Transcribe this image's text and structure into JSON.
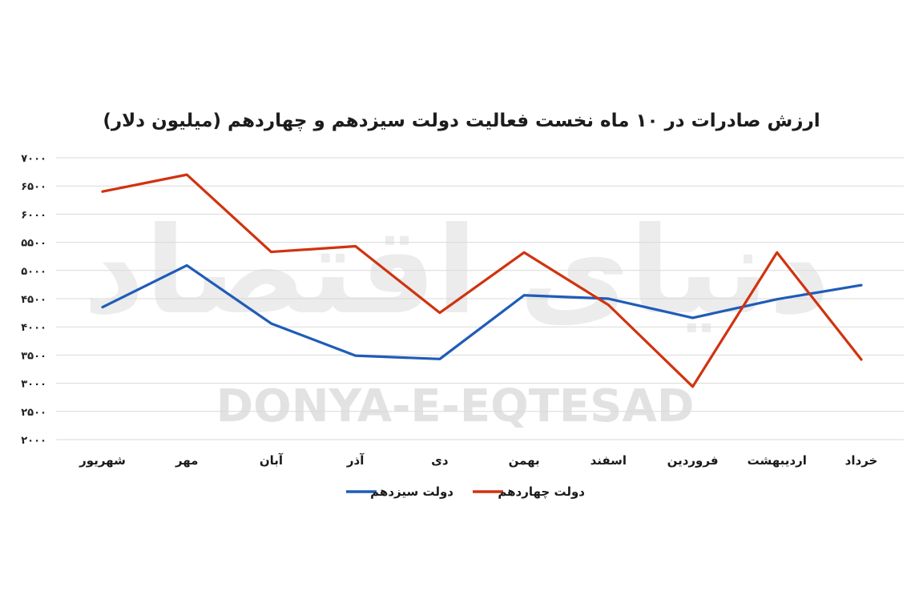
{
  "chart_data": {
    "type": "line",
    "title": "ارزش صادرات در ۱۰ ماه نخست فعالیت دولت سیزدهم و چهاردهم (میلیون دلار)",
    "categories": [
      "شهریور",
      "مهر",
      "آبان",
      "آذر",
      "دی",
      "بهمن",
      "اسفند",
      "فروردین",
      "اردیبهشت",
      "خرداد"
    ],
    "ylim": [
      2000,
      7000
    ],
    "yticks": [
      2000,
      2500,
      3000,
      3500,
      4000,
      4500,
      5000,
      5500,
      6000,
      6500,
      7000
    ],
    "ytick_labels": [
      "۲۰۰۰",
      "۲۵۰۰",
      "۳۰۰۰",
      "۳۵۰۰",
      "۴۰۰۰",
      "۴۵۰۰",
      "۵۰۰۰",
      "۵۵۰۰",
      "۶۰۰۰",
      "۶۵۰۰",
      "۷۰۰۰"
    ],
    "grid": true,
    "legend_position": "bottom",
    "series": [
      {
        "name": "دولت سیزدهم",
        "color": "#1f5cb8",
        "values": [
          4350,
          5090,
          4060,
          3490,
          3430,
          4560,
          4500,
          4160,
          4490,
          4740
        ]
      },
      {
        "name": "دولت چهاردهم",
        "color": "#d0330f",
        "values": [
          6400,
          6700,
          5330,
          5430,
          4250,
          5320,
          4390,
          2940,
          5320,
          3420
        ]
      }
    ]
  },
  "watermark": {
    "latin": "DONYA-E-EQTESAD",
    "persian": "دنیای اقتصاد"
  }
}
